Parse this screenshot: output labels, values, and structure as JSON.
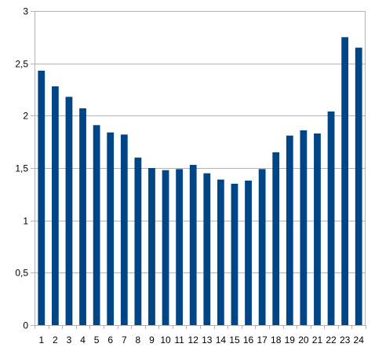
{
  "chart_data": {
    "type": "bar",
    "categories": [
      "1",
      "2",
      "3",
      "4",
      "5",
      "6",
      "7",
      "8",
      "9",
      "10",
      "11",
      "12",
      "13",
      "14",
      "15",
      "16",
      "17",
      "18",
      "19",
      "20",
      "21",
      "22",
      "23",
      "24"
    ],
    "values": [
      2.43,
      2.28,
      2.18,
      2.07,
      1.91,
      1.84,
      1.82,
      1.6,
      1.5,
      1.48,
      1.49,
      1.53,
      1.45,
      1.39,
      1.35,
      1.38,
      1.49,
      1.65,
      1.81,
      1.86,
      1.83,
      2.04,
      2.75,
      2.65
    ],
    "title": "",
    "xlabel": "",
    "ylabel": "",
    "ylim": [
      0,
      3
    ],
    "yticks": [
      0,
      0.5,
      1,
      1.5,
      2,
      2.5,
      3
    ],
    "ytick_labels": [
      "0",
      "0,5",
      "1",
      "1,5",
      "2",
      "2,5",
      "3"
    ],
    "grid": "horizontal",
    "legend": "none",
    "colors": {
      "bar": "#004586",
      "grid": "#b3b3b3",
      "axis": "#b3b3b3",
      "text": "#000000"
    }
  }
}
